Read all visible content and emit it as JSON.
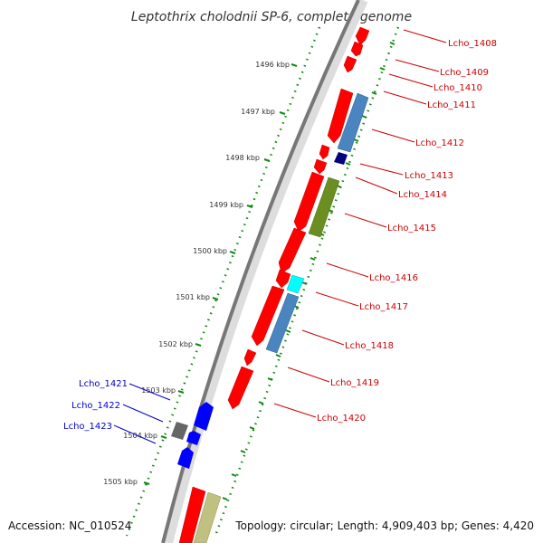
{
  "title": "Leptothrix cholodnii SP-6, complete genome",
  "footer": {
    "accession": "Accession: NC_010524",
    "summary": "Topology: circular; Length: 4,909,403 bp; Genes: 4,420"
  },
  "colors": {
    "cds": "#ff0000",
    "label_right": "#cc0000",
    "label_left": "#0000cc",
    "tick": "#118811",
    "backbone": "#777777"
  },
  "ticks": [
    "1496 kbp",
    "1497 kbp",
    "1498 kbp",
    "1499 kbp",
    "1500 kbp",
    "1501 kbp",
    "1502 kbp",
    "1503 kbp",
    "1504 kbp",
    "1505 kbp"
  ],
  "gene_labels_right": [
    "Lcho_1408",
    "Lcho_1409",
    "Lcho_1410",
    "Lcho_1411",
    "Lcho_1412",
    "Lcho_1413",
    "Lcho_1414",
    "Lcho_1415",
    "Lcho_1416",
    "Lcho_1417",
    "Lcho_1418",
    "Lcho_1419",
    "Lcho_1420"
  ],
  "gene_labels_left": [
    "Lcho_1421",
    "Lcho_1422",
    "Lcho_1423"
  ]
}
